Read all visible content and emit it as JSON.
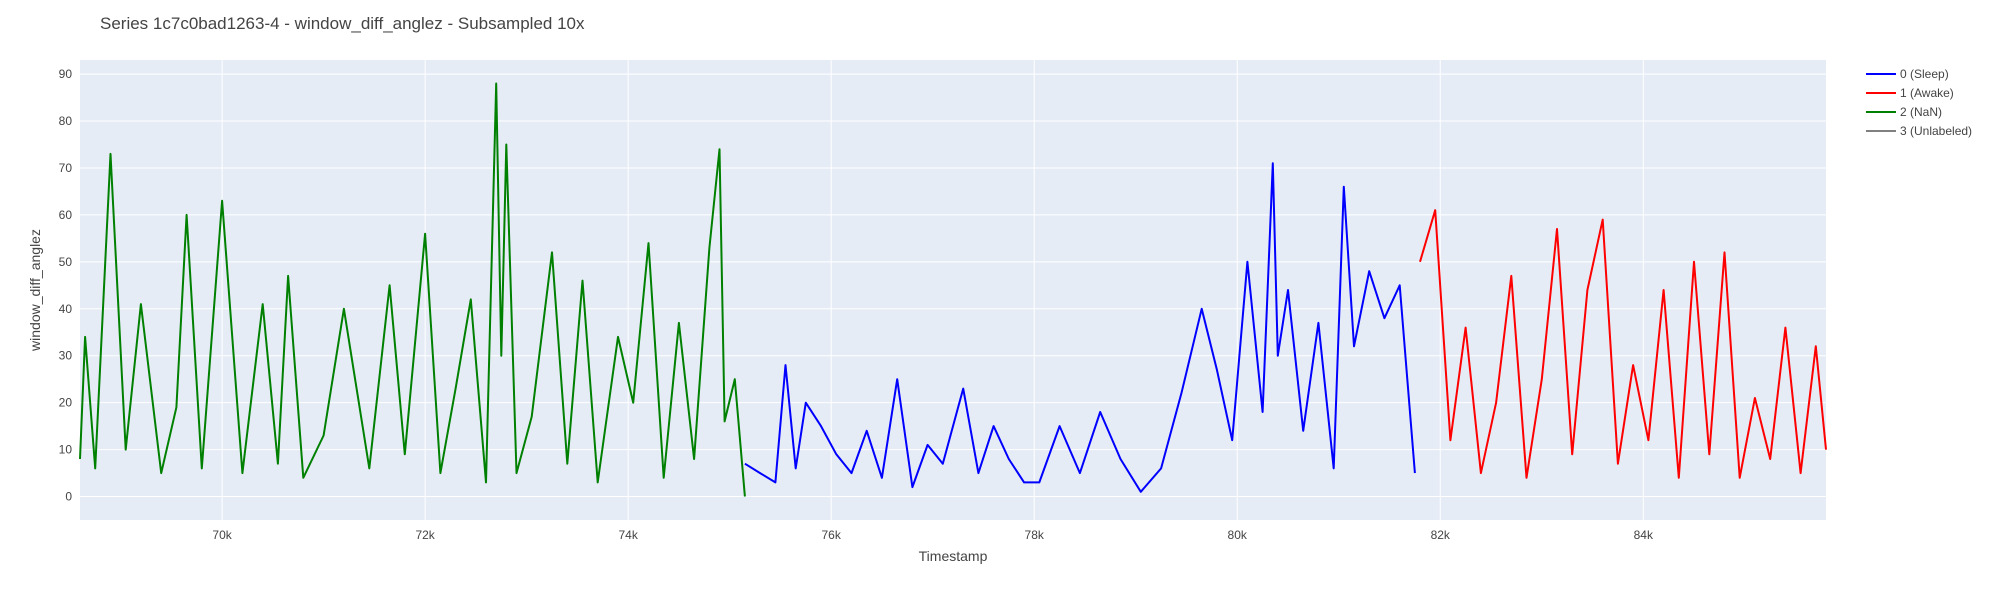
{
  "chart_data": {
    "type": "line",
    "title": "Series 1c7c0bad1263-4 - window_diff_anglez - Subsampled 10x",
    "xlabel": "Timestamp",
    "ylabel": "window_diff_anglez",
    "xlim": [
      68600,
      85800
    ],
    "ylim": [
      -5,
      93
    ],
    "x_ticks": [
      70000,
      72000,
      74000,
      76000,
      78000,
      80000,
      82000,
      84000
    ],
    "x_tick_labels": [
      "70k",
      "72k",
      "74k",
      "76k",
      "78k",
      "80k",
      "82k",
      "84k"
    ],
    "y_ticks": [
      0,
      10,
      20,
      30,
      40,
      50,
      60,
      70,
      80,
      90
    ],
    "y_tick_labels": [
      "0",
      "10",
      "20",
      "30",
      "40",
      "50",
      "60",
      "70",
      "80",
      "90"
    ],
    "grid": true,
    "legend_position": "top-right",
    "plot_background": "#e5ecf6",
    "series": [
      {
        "name": "0 (Sleep)",
        "color": "#0000ff",
        "x": [
          75150,
          75300,
          75450,
          75550,
          75650,
          75750,
          75900,
          76050,
          76200,
          76350,
          76500,
          76650,
          76800,
          76950,
          77100,
          77300,
          77450,
          77600,
          77750,
          77900,
          78050,
          78250,
          78450,
          78650,
          78850,
          79050,
          79250,
          79450,
          79650,
          79800,
          79950,
          80100,
          80250,
          80350,
          80400,
          80500,
          80650,
          80800,
          80950,
          81050,
          81150,
          81300,
          81450,
          81600,
          81750
        ],
        "y": [
          7,
          5,
          3,
          28,
          6,
          20,
          15,
          9,
          5,
          14,
          4,
          25,
          2,
          11,
          7,
          23,
          5,
          15,
          8,
          3,
          3,
          15,
          5,
          18,
          8,
          1,
          6,
          22,
          40,
          27,
          12,
          50,
          18,
          71,
          30,
          44,
          14,
          37,
          6,
          66,
          32,
          48,
          38,
          45,
          5
        ]
      },
      {
        "name": "1 (Awake)",
        "color": "#ff0000",
        "x": [
          81800,
          81950,
          82100,
          82250,
          82400,
          82550,
          82700,
          82850,
          83000,
          83150,
          83300,
          83450,
          83600,
          83750,
          83900,
          84050,
          84200,
          84350,
          84500,
          84650,
          84800,
          84950,
          85100,
          85250,
          85400,
          85550,
          85700,
          85800
        ],
        "y": [
          50,
          61,
          12,
          36,
          5,
          20,
          47,
          4,
          25,
          57,
          9,
          44,
          59,
          7,
          28,
          12,
          44,
          4,
          50,
          9,
          52,
          4,
          21,
          8,
          36,
          5,
          32,
          10
        ]
      },
      {
        "name": "2 (NaN)",
        "color": "#008000",
        "x": [
          68600,
          68650,
          68750,
          68900,
          69050,
          69200,
          69400,
          69550,
          69650,
          69800,
          70000,
          70200,
          70400,
          70550,
          70650,
          70800,
          71000,
          71200,
          71450,
          71650,
          71800,
          72000,
          72150,
          72300,
          72450,
          72600,
          72700,
          72750,
          72800,
          72900,
          73050,
          73250,
          73400,
          73550,
          73700,
          73900,
          74050,
          74200,
          74350,
          74500,
          74650,
          74800,
          74900,
          74950,
          75050,
          75150
        ],
        "y": [
          8,
          34,
          6,
          73,
          10,
          41,
          5,
          19,
          60,
          6,
          63,
          5,
          41,
          7,
          47,
          4,
          13,
          40,
          6,
          45,
          9,
          56,
          5,
          23,
          42,
          3,
          88,
          30,
          75,
          5,
          17,
          52,
          7,
          46,
          3,
          34,
          20,
          54,
          4,
          37,
          8,
          53,
          74,
          16,
          25,
          0
        ]
      },
      {
        "name": "3 (Unlabeled)",
        "color": "#808080",
        "x": [],
        "y": []
      }
    ]
  }
}
